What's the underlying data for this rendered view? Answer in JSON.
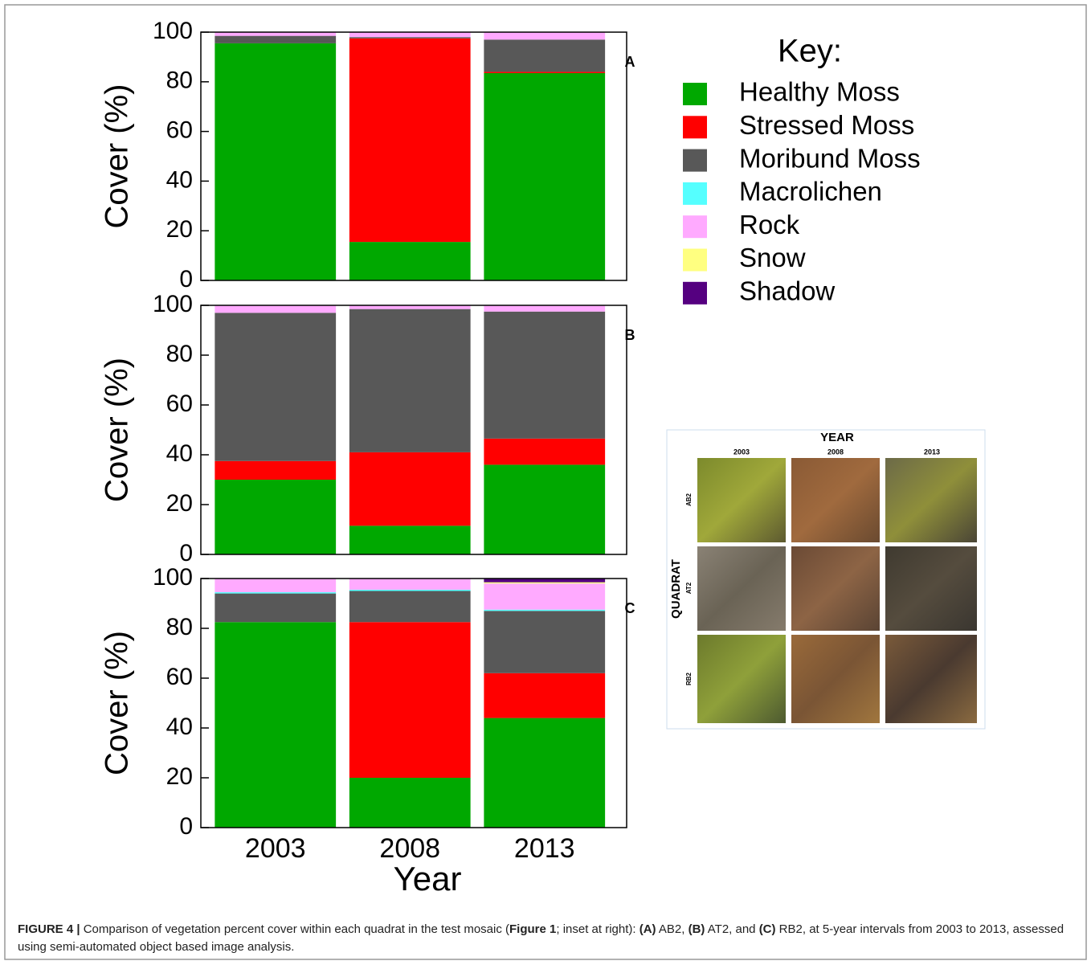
{
  "chart_data": {
    "type": "stacked-bar",
    "legend_title": "Key:",
    "ylabel": "Cover (%)",
    "xlabel": "Year",
    "categories": [
      "2003",
      "2008",
      "2013"
    ],
    "panels": [
      "A",
      "B",
      "C"
    ],
    "ylim": [
      0,
      100
    ],
    "yticks": [
      0,
      20,
      40,
      60,
      80,
      100
    ],
    "series": [
      {
        "name": "Healthy Moss",
        "color": "#00a800",
        "values": [
          [
            95.5,
            15.5,
            83.5
          ],
          [
            30,
            11.5,
            36
          ],
          [
            82.5,
            20,
            44
          ]
        ]
      },
      {
        "name": "Stressed Moss",
        "color": "#ff0000",
        "values": [
          [
            0,
            82,
            0.5
          ],
          [
            7.5,
            29.5,
            10.5
          ],
          [
            0,
            62.5,
            18
          ]
        ]
      },
      {
        "name": "Moribund Moss",
        "color": "#585858",
        "values": [
          [
            3,
            0.5,
            13
          ],
          [
            59.5,
            57.5,
            51
          ],
          [
            11.5,
            12.5,
            25
          ]
        ]
      },
      {
        "name": "Macrolichen",
        "color": "#55ffff",
        "values": [
          [
            0,
            0,
            0
          ],
          [
            0,
            0,
            0
          ],
          [
            0.5,
            0.5,
            0.5
          ]
        ]
      },
      {
        "name": "Rock",
        "color": "#ffaaff",
        "values": [
          [
            1.5,
            2,
            3
          ],
          [
            3,
            1.5,
            2.5
          ],
          [
            5.5,
            4.5,
            10.5
          ]
        ]
      },
      {
        "name": "Snow",
        "color": "#ffff80",
        "values": [
          [
            0,
            0,
            0
          ],
          [
            0,
            0,
            0
          ],
          [
            0,
            0,
            0.5
          ]
        ]
      },
      {
        "name": "Shadow",
        "color": "#550080",
        "values": [
          [
            0,
            0,
            0
          ],
          [
            0,
            0,
            0
          ],
          [
            0,
            0,
            1.5
          ]
        ]
      }
    ]
  },
  "inset": {
    "title": "YEAR",
    "years": [
      "2003",
      "2008",
      "2013"
    ],
    "ylabel": "QUADRAT",
    "quadrats": [
      "AB2",
      "AT2",
      "RB2"
    ]
  },
  "caption": {
    "text": [
      "FIGURE 4 | ",
      "Comparison of vegetation percent cover within each quadrat in the test mosaic (",
      "Figure 1",
      "; inset at right): ",
      "(A)",
      " AB2, ",
      "(B)",
      " AT2, and ",
      "(C)",
      " RB2, at 5-year intervals from 2003 to 2013, assessed using semi-automated object based image analysis."
    ]
  }
}
